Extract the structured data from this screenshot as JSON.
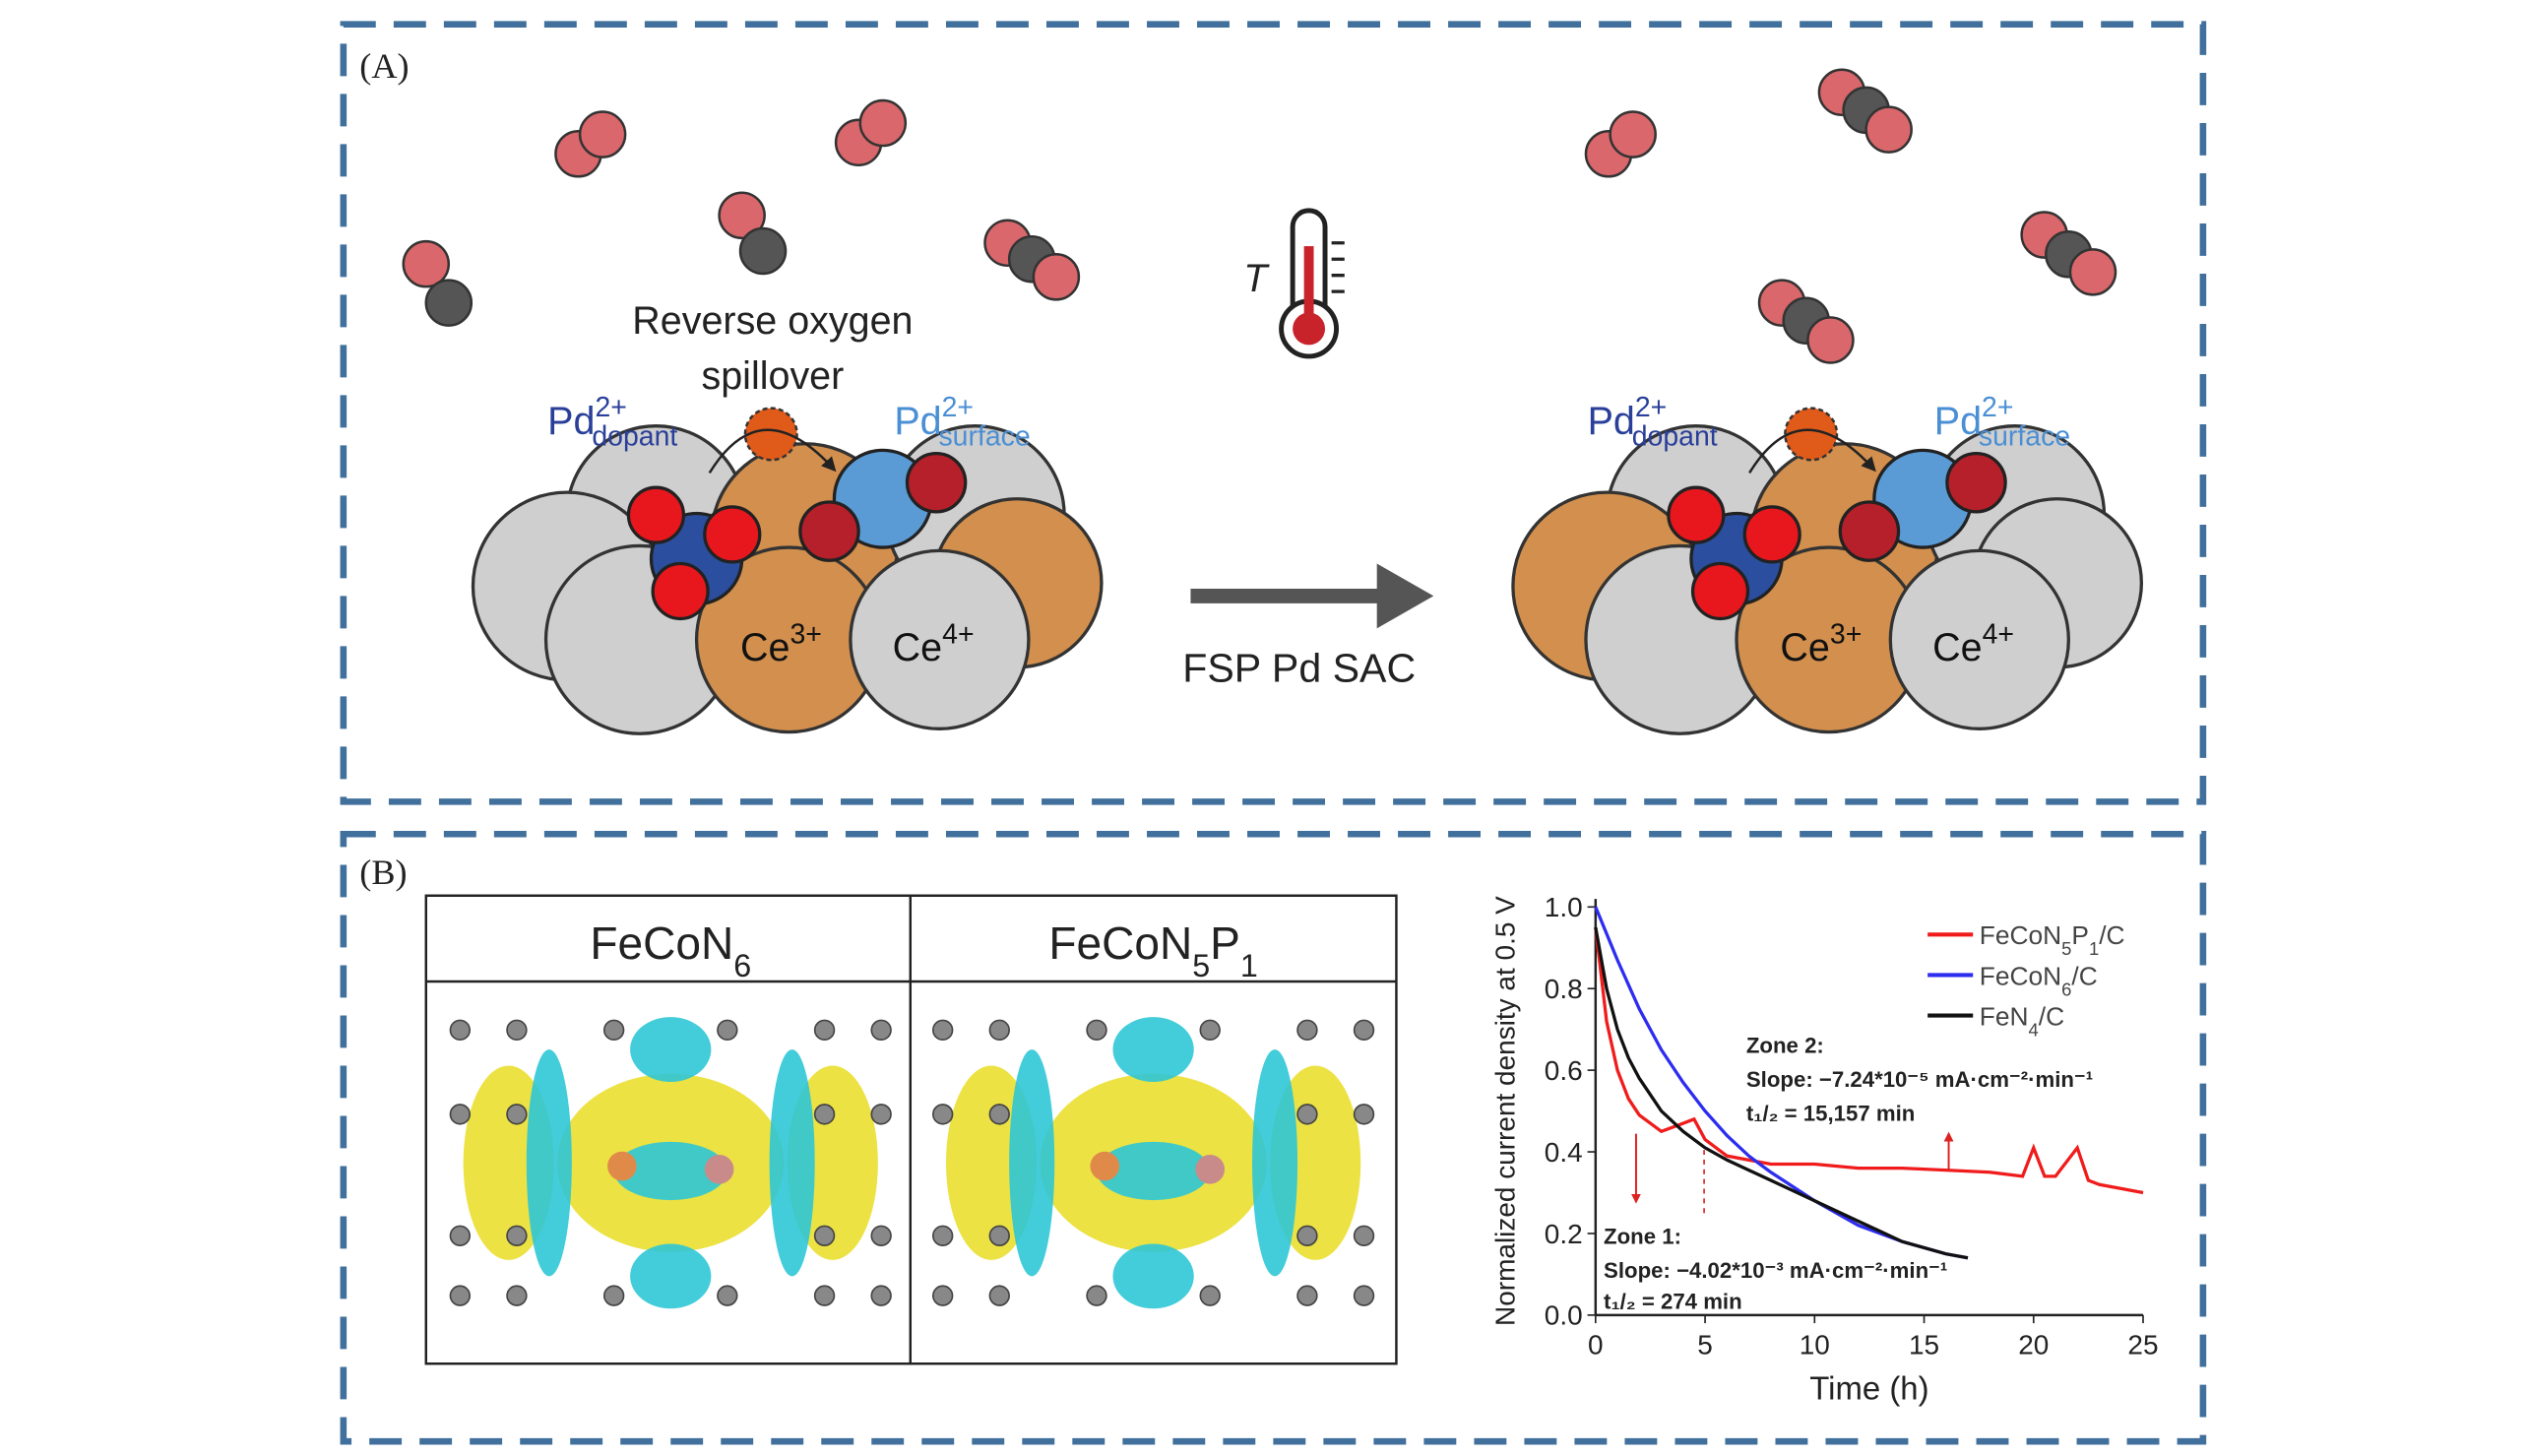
{
  "panel_a": {
    "label": "(A)",
    "left": {
      "caption_line1": "Reverse oxygen",
      "caption_line2": "spillover",
      "pd_dopant": {
        "base": "Pd",
        "sup": "2+",
        "sub": "dopant"
      },
      "pd_surface": {
        "base": "Pd",
        "sup": "2+",
        "sub": "surface"
      },
      "ce3": {
        "base": "Ce",
        "sup": "3+"
      },
      "ce4": {
        "base": "Ce",
        "sup": "4+"
      }
    },
    "temperature": "T",
    "arrow_label": "FSP Pd SAC",
    "right": {
      "pd_dopant": {
        "base": "Pd",
        "sup": "2+",
        "sub": "dopant"
      },
      "pd_surface": {
        "base": "Pd",
        "sup": "2+",
        "sub": "surface"
      },
      "ce3": {
        "base": "Ce",
        "sup": "3+"
      },
      "ce4": {
        "base": "Ce",
        "sup": "4+"
      }
    }
  },
  "panel_b": {
    "label": "(B)",
    "table": {
      "headers": [
        "FeCoN6",
        "FeCoN5P1"
      ]
    }
  },
  "chart_data": {
    "type": "line",
    "xlabel": "Time (h)",
    "ylabel": "Normalized current density at 0.5 V",
    "xlim": [
      0,
      25
    ],
    "xticks": [
      0,
      5,
      10,
      15,
      20,
      25
    ],
    "ylim": [
      0,
      1.0
    ],
    "yticks": [
      {
        "value": 0,
        "label": "0.0"
      },
      0.2,
      0.4,
      0.6,
      0.8,
      {
        "value": 1,
        "label": "1.0"
      }
    ],
    "series": [
      {
        "name": "FeCoN5P1/C",
        "color": "#f01c1c",
        "x": [
          0,
          0.5,
          1,
          1.5,
          2,
          3,
          4,
          4.5,
          5,
          6,
          8,
          10,
          12,
          14,
          16,
          18,
          19.5,
          20,
          20.5,
          21,
          22,
          22.5,
          23,
          24,
          25
        ],
        "values": [
          0.95,
          0.72,
          0.6,
          0.53,
          0.49,
          0.45,
          0.47,
          0.48,
          0.43,
          0.39,
          0.37,
          0.37,
          0.36,
          0.36,
          0.355,
          0.35,
          0.34,
          0.41,
          0.34,
          0.34,
          0.41,
          0.33,
          0.32,
          0.31,
          0.3
        ]
      },
      {
        "name": "FeCoN6/C",
        "color": "#2d2df0",
        "x": [
          0,
          1,
          2,
          3,
          4,
          5,
          6,
          7,
          8,
          10,
          12,
          14,
          16,
          17
        ],
        "values": [
          1.0,
          0.87,
          0.75,
          0.65,
          0.57,
          0.5,
          0.44,
          0.39,
          0.35,
          0.28,
          0.22,
          0.18,
          0.15,
          0.14
        ]
      },
      {
        "name": "FeN4/C",
        "color": "#111111",
        "x": [
          0,
          0.5,
          1,
          1.5,
          2,
          3,
          4,
          5,
          6,
          8,
          10,
          12,
          14,
          16,
          17
        ],
        "values": [
          0.95,
          0.8,
          0.7,
          0.63,
          0.58,
          0.5,
          0.45,
          0.41,
          0.38,
          0.33,
          0.28,
          0.23,
          0.18,
          0.15,
          0.14
        ]
      }
    ],
    "annotations": {
      "zone2": "Zone 2:",
      "zone2_slope": "Slope: −7.24*10⁻⁵ mA·cm⁻²·min⁻¹",
      "zone2_t": "t₁/₂ = 15,157 min",
      "zone1": "Zone 1:",
      "zone1_slope": "Slope: −4.02*10⁻³ mA·cm⁻²·min⁻¹",
      "zone1_t": "t₁/₂ = 274 min"
    }
  }
}
